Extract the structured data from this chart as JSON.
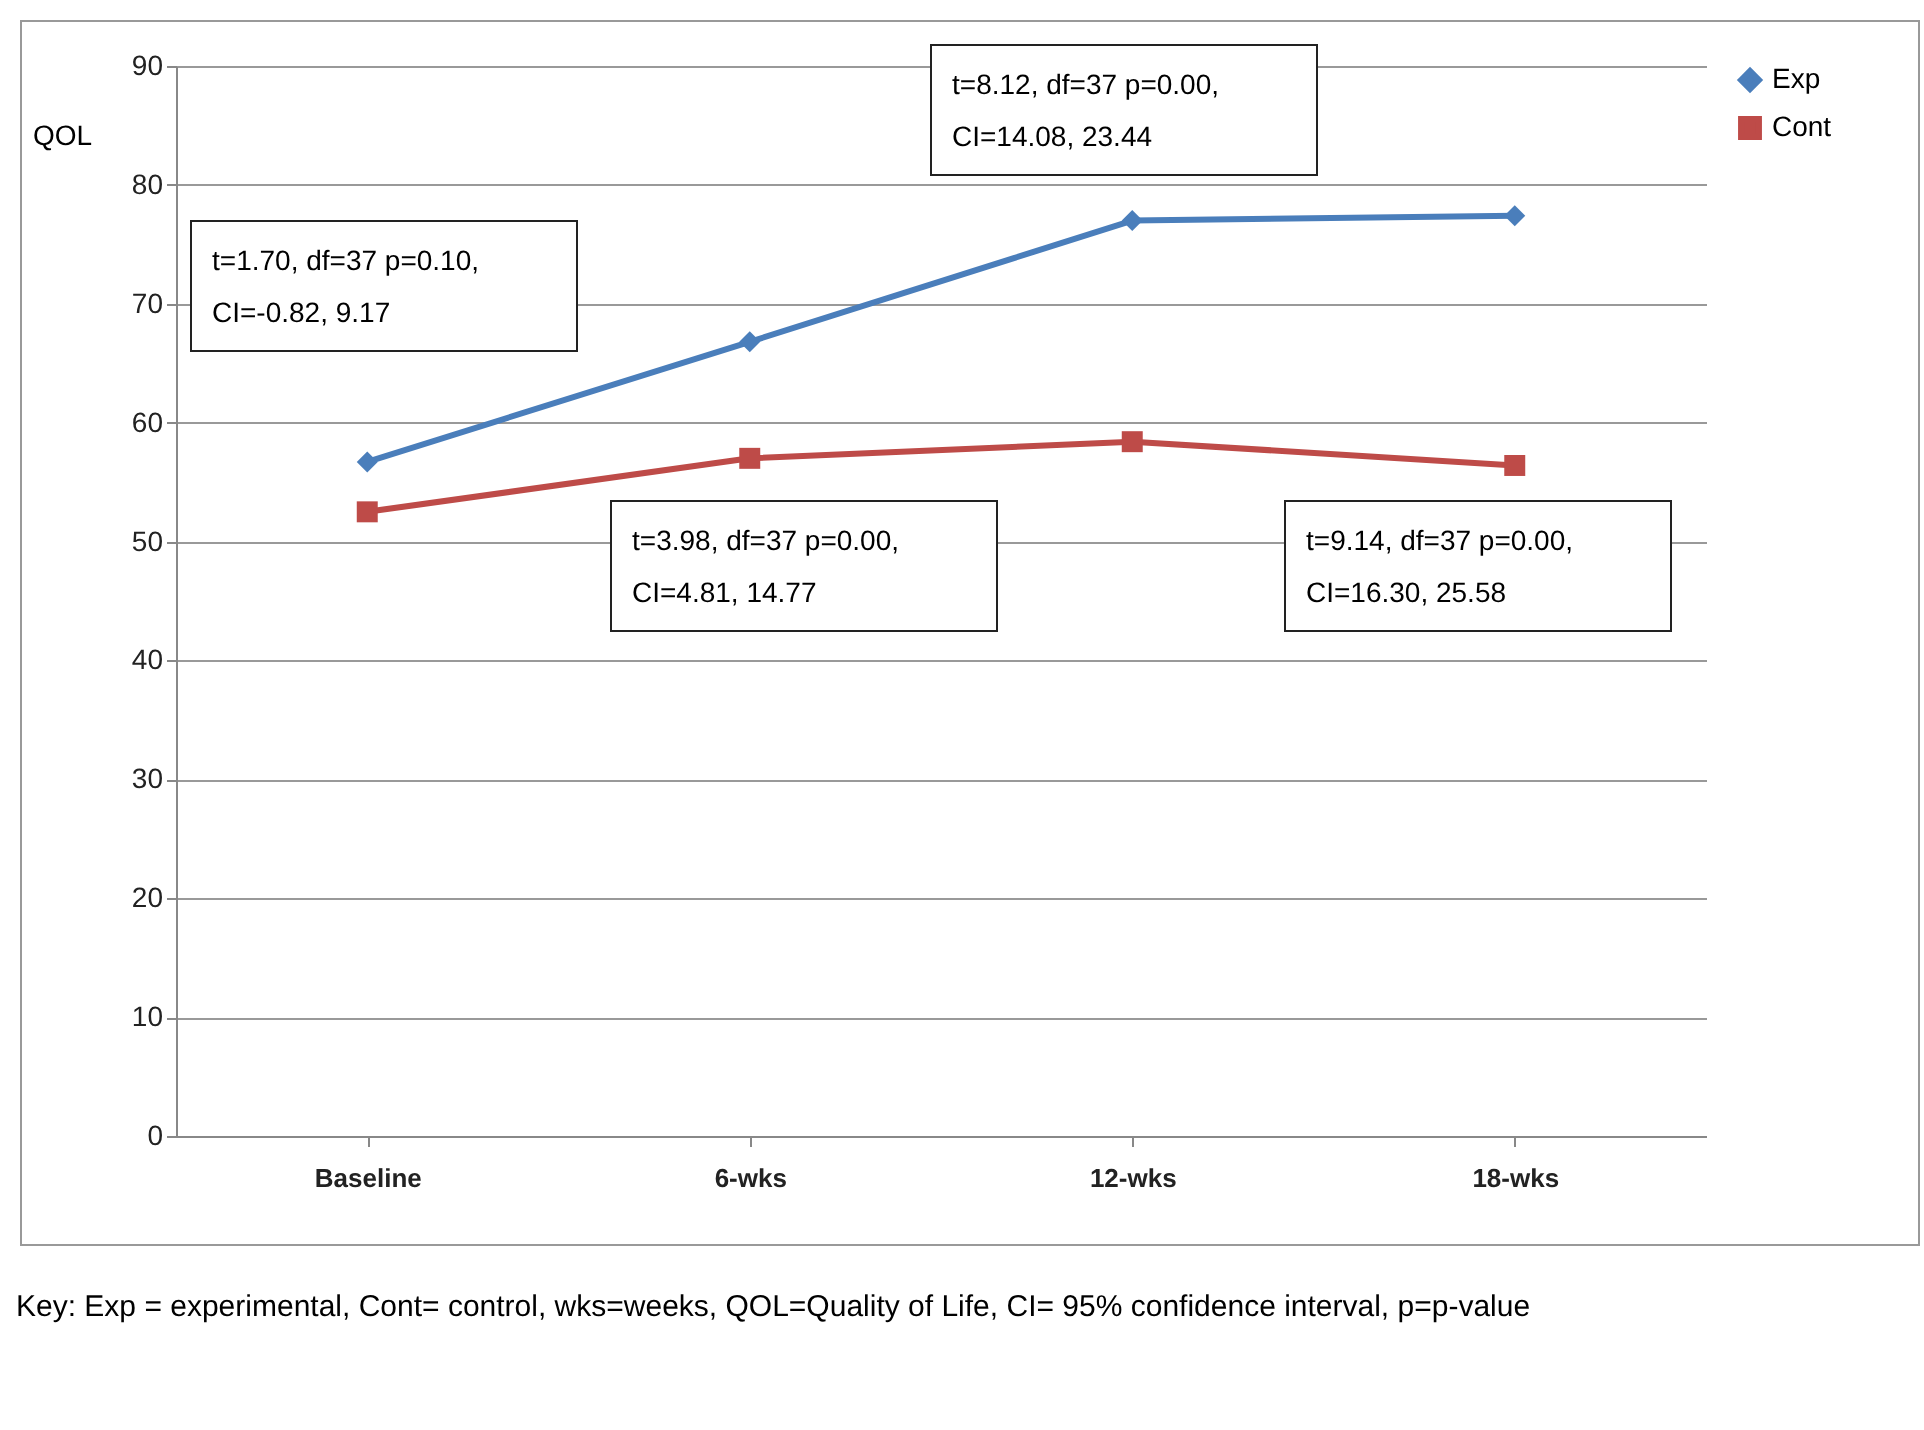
{
  "chart_data": {
    "type": "line",
    "ylabel": "QOL",
    "categories": [
      "Baseline",
      "6-wks",
      "12-wks",
      "18-wks"
    ],
    "series": [
      {
        "name": "Exp",
        "color": "#4a7ebb",
        "marker": "diamond",
        "values": [
          56.7,
          66.8,
          77.0,
          77.4
        ]
      },
      {
        "name": "Cont",
        "color": "#be4b48",
        "marker": "square",
        "values": [
          52.5,
          57.0,
          58.4,
          56.4
        ]
      }
    ],
    "ylim": [
      0,
      90
    ],
    "yticks": [
      0,
      10,
      20,
      30,
      40,
      50,
      60,
      70,
      80,
      90
    ],
    "grid": "y",
    "legend": "right",
    "annotations": [
      "t=1.70, df=37 p=0.10,\nCI=-0.82, 9.17",
      "t=8.12, df=37 p=0.00,\nCI=14.08, 23.44",
      "t=3.98, df=37 p=0.00,\nCI=4.81, 14.77",
      "t=9.14, df=37 p=0.00,\nCI=16.30, 25.58",
      "Key: Exp = experimental, Cont= control, wks=weeks, QOL=Quality of Life, CI= 95% confidence interval, p=p-value"
    ]
  }
}
